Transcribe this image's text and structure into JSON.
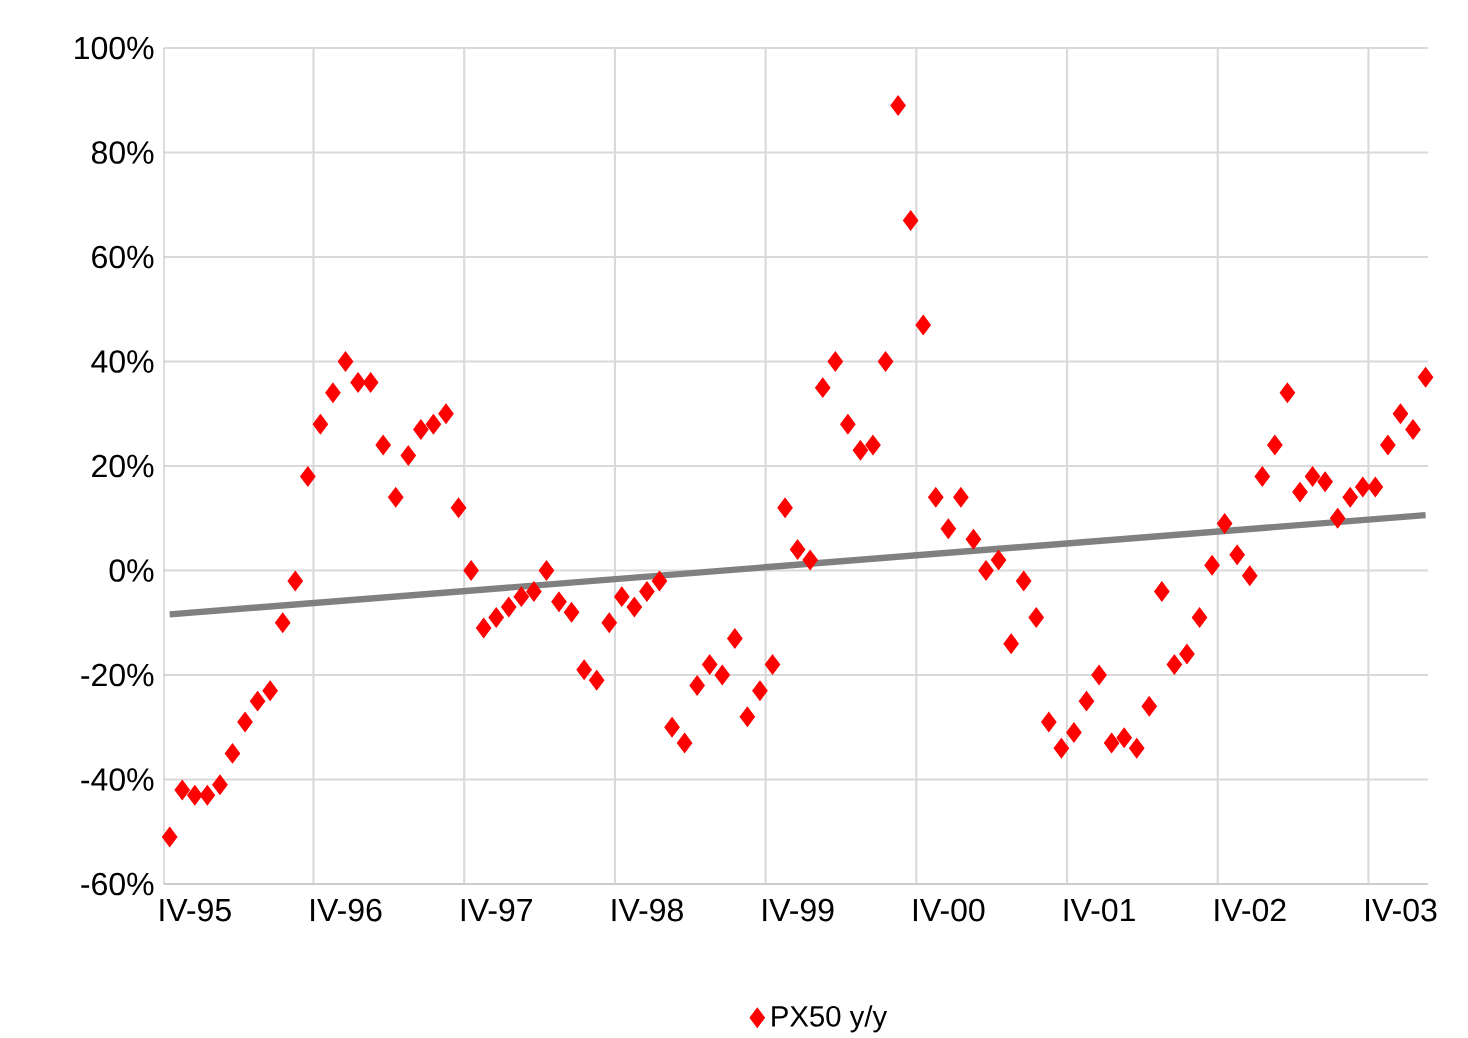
{
  "chart_data": {
    "type": "scatter",
    "series": [
      {
        "name": "PX50 y/y",
        "color": "#ff0000",
        "marker": "diamond",
        "x": [
          "1995-02",
          "1995-03",
          "1995-04",
          "1995-05",
          "1995-06",
          "1995-07",
          "1995-08",
          "1995-09",
          "1995-10",
          "1995-11",
          "1995-12",
          "1996-01",
          "1996-02",
          "1996-03",
          "1996-04",
          "1996-05",
          "1996-06",
          "1996-07",
          "1996-08",
          "1996-09",
          "1996-10",
          "1996-11",
          "1996-12",
          "1997-01",
          "1997-02",
          "1997-03",
          "1997-04",
          "1997-05",
          "1997-06",
          "1997-07",
          "1997-08",
          "1997-09",
          "1997-10",
          "1997-11",
          "1997-12",
          "1998-01",
          "1998-02",
          "1998-03",
          "1998-04",
          "1998-05",
          "1998-06",
          "1998-07",
          "1998-08",
          "1998-09",
          "1998-10",
          "1998-11",
          "1998-12",
          "1999-01",
          "1999-02",
          "1999-03",
          "1999-04",
          "1999-05",
          "1999-06",
          "1999-07",
          "1999-08",
          "1999-09",
          "1999-10",
          "1999-11",
          "1999-12",
          "2000-01",
          "2000-02",
          "2000-03",
          "2000-04",
          "2000-05",
          "2000-06",
          "2000-07",
          "2000-08",
          "2000-09",
          "2000-10",
          "2000-11",
          "2000-12",
          "2001-01",
          "2001-02",
          "2001-03",
          "2001-04",
          "2001-05",
          "2001-06",
          "2001-07",
          "2001-08",
          "2001-09",
          "2001-10",
          "2001-11",
          "2001-12",
          "2002-01",
          "2002-02",
          "2002-03",
          "2002-04",
          "2002-05",
          "2002-06",
          "2002-07",
          "2002-08",
          "2002-09",
          "2002-10",
          "2002-11",
          "2002-12",
          "2003-01",
          "2003-02",
          "2003-03",
          "2003-04",
          "2003-05",
          "2003-06"
        ],
        "values": [
          -51,
          -42,
          -43,
          -43,
          -41,
          -35,
          -29,
          -25,
          -23,
          -10,
          -2,
          18,
          28,
          34,
          40,
          36,
          36,
          24,
          14,
          22,
          27,
          28,
          30,
          12,
          0,
          -11,
          -9,
          -7,
          -5,
          -4,
          0,
          -6,
          -8,
          -19,
          -21,
          -10,
          -5,
          -7,
          -4,
          -2,
          -30,
          -33,
          -22,
          -18,
          -20,
          -13,
          -28,
          -23,
          -18,
          12,
          4,
          2,
          35,
          40,
          28,
          23,
          24,
          40,
          89,
          67,
          47,
          14,
          8,
          14,
          6,
          0,
          2,
          -14,
          -2,
          -9,
          -29,
          -34,
          -31,
          -25,
          -20,
          -33,
          -32,
          -34,
          -26,
          -4,
          -18,
          -16,
          -9,
          1,
          9,
          3,
          -1,
          18,
          24,
          34,
          15,
          18,
          17,
          10,
          14,
          16,
          16,
          24,
          30,
          27,
          37
        ]
      },
      {
        "type": "line",
        "color": "#808080",
        "x": [
          "1995-02",
          "2003-06"
        ],
        "values": [
          -8.4,
          10.6
        ]
      }
    ],
    "xlim": [
      "1995-01-18",
      "2003-06-07"
    ],
    "xticks": [
      {
        "value": "1995-04",
        "label": "IV-95"
      },
      {
        "value": "1996-01-15",
        "label": null
      },
      {
        "value": "1996-04",
        "label": "IV-96"
      },
      {
        "value": "1997-01-15",
        "label": null
      },
      {
        "value": "1997-04",
        "label": "IV-97"
      },
      {
        "value": "1998-01-15",
        "label": null
      },
      {
        "value": "1998-04",
        "label": "IV-98"
      },
      {
        "value": "1999-01-15",
        "label": null
      },
      {
        "value": "1999-04",
        "label": "IV-99"
      },
      {
        "value": "2000-01-15",
        "label": null
      },
      {
        "value": "2000-04",
        "label": "IV-00"
      },
      {
        "value": "2001-01-15",
        "label": null
      },
      {
        "value": "2001-04",
        "label": "IV-01"
      },
      {
        "value": "2002-01-15",
        "label": null
      },
      {
        "value": "2002-04",
        "label": "IV-02"
      },
      {
        "value": "2003-01-15",
        "label": null
      },
      {
        "value": "2003-04",
        "label": "IV-03"
      }
    ],
    "ylim": [
      -60,
      100
    ],
    "yticks": [
      {
        "value": -60,
        "label": "-60%"
      },
      {
        "value": -40,
        "label": "-40%"
      },
      {
        "value": -20,
        "label": "-20%"
      },
      {
        "value": 0,
        "label": "0%"
      },
      {
        "value": 20,
        "label": "20%"
      },
      {
        "value": 40,
        "label": "40%"
      },
      {
        "value": 60,
        "label": "60%"
      },
      {
        "value": 80,
        "label": "80%"
      },
      {
        "value": 100,
        "label": "100%"
      }
    ],
    "grid": true,
    "legend": "bottom"
  }
}
